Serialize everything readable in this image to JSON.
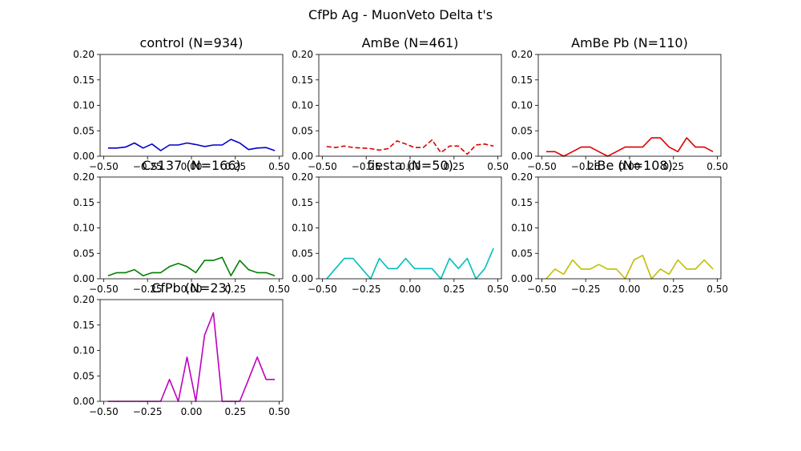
{
  "suptitle": "CfPb Ag - MuonVeto Delta t's",
  "chart_data": [
    {
      "type": "line",
      "title": "control (N=934)",
      "color": "#0000cc",
      "linestyle": "solid",
      "xlim": [
        -0.52,
        0.52
      ],
      "ylim": [
        0,
        0.2
      ],
      "xticks": [
        "−0.50",
        "−0.25",
        "0.00",
        "0.25",
        "0.50"
      ],
      "yticks": [
        "0.00",
        "0.05",
        "0.10",
        "0.15",
        "0.20"
      ],
      "x": [
        -0.475,
        -0.425,
        -0.375,
        -0.325,
        -0.275,
        -0.225,
        -0.175,
        -0.125,
        -0.075,
        -0.025,
        0.025,
        0.075,
        0.125,
        0.175,
        0.225,
        0.275,
        0.325,
        0.375,
        0.425,
        0.475
      ],
      "y": [
        0.016,
        0.016,
        0.018,
        0.026,
        0.016,
        0.024,
        0.011,
        0.022,
        0.022,
        0.026,
        0.023,
        0.019,
        0.022,
        0.022,
        0.033,
        0.026,
        0.013,
        0.016,
        0.017,
        0.011
      ]
    },
    {
      "type": "line",
      "title": "AmBe (N=461)",
      "color": "#dd0000",
      "linestyle": "dashed",
      "xlim": [
        -0.52,
        0.52
      ],
      "ylim": [
        0,
        0.2
      ],
      "xticks": [
        "−0.50",
        "−0.25",
        "0.00",
        "0.25",
        "0.50"
      ],
      "yticks": [
        "0.00",
        "0.05",
        "0.10",
        "0.15",
        "0.20"
      ],
      "x": [
        -0.475,
        -0.425,
        -0.375,
        -0.325,
        -0.275,
        -0.225,
        -0.175,
        -0.125,
        -0.075,
        -0.025,
        0.025,
        0.075,
        0.125,
        0.175,
        0.225,
        0.275,
        0.325,
        0.375,
        0.425,
        0.475
      ],
      "y": [
        0.019,
        0.017,
        0.02,
        0.017,
        0.016,
        0.015,
        0.012,
        0.015,
        0.03,
        0.024,
        0.017,
        0.017,
        0.032,
        0.007,
        0.02,
        0.02,
        0.004,
        0.022,
        0.024,
        0.02
      ]
    },
    {
      "type": "line",
      "title": "AmBe Pb (N=110)",
      "color": "#dd0000",
      "linestyle": "solid",
      "xlim": [
        -0.52,
        0.52
      ],
      "ylim": [
        0,
        0.2
      ],
      "xticks": [
        "−0.50",
        "−0.25",
        "0.00",
        "0.25",
        "0.50"
      ],
      "yticks": [
        "0.00",
        "0.05",
        "0.10",
        "0.15",
        "0.20"
      ],
      "x": [
        -0.475,
        -0.425,
        -0.375,
        -0.325,
        -0.275,
        -0.225,
        -0.175,
        -0.125,
        -0.075,
        -0.025,
        0.025,
        0.075,
        0.125,
        0.175,
        0.225,
        0.275,
        0.325,
        0.375,
        0.425,
        0.475
      ],
      "y": [
        0.009,
        0.009,
        0.0,
        0.009,
        0.018,
        0.018,
        0.009,
        0.0,
        0.009,
        0.018,
        0.018,
        0.018,
        0.036,
        0.036,
        0.018,
        0.009,
        0.036,
        0.018,
        0.018,
        0.009
      ]
    },
    {
      "type": "line",
      "title": "Cs137 (N=166)",
      "color": "#007f00",
      "linestyle": "solid",
      "xlim": [
        -0.52,
        0.52
      ],
      "ylim": [
        0,
        0.2
      ],
      "xticks": [
        "−0.50",
        "−0.25",
        "0.00",
        "0.25",
        "0.50"
      ],
      "yticks": [
        "0.00",
        "0.05",
        "0.10",
        "0.15",
        "0.20"
      ],
      "x": [
        -0.475,
        -0.425,
        -0.375,
        -0.325,
        -0.275,
        -0.225,
        -0.175,
        -0.125,
        -0.075,
        -0.025,
        0.025,
        0.075,
        0.125,
        0.175,
        0.225,
        0.275,
        0.325,
        0.375,
        0.425,
        0.475
      ],
      "y": [
        0.006,
        0.012,
        0.012,
        0.018,
        0.006,
        0.012,
        0.012,
        0.024,
        0.03,
        0.024,
        0.012,
        0.036,
        0.036,
        0.042,
        0.006,
        0.036,
        0.018,
        0.012,
        0.012,
        0.006
      ]
    },
    {
      "type": "line",
      "title": "fiesta (N=50)",
      "color": "#00bfbf",
      "linestyle": "solid",
      "xlim": [
        -0.52,
        0.52
      ],
      "ylim": [
        0,
        0.2
      ],
      "xticks": [
        "−0.50",
        "−0.25",
        "0.00",
        "0.25",
        "0.50"
      ],
      "yticks": [
        "0.00",
        "0.05",
        "0.10",
        "0.15",
        "0.20"
      ],
      "x": [
        -0.475,
        -0.425,
        -0.375,
        -0.325,
        -0.275,
        -0.225,
        -0.175,
        -0.125,
        -0.075,
        -0.025,
        0.025,
        0.075,
        0.125,
        0.175,
        0.225,
        0.275,
        0.325,
        0.375,
        0.425,
        0.475
      ],
      "y": [
        0.0,
        0.02,
        0.04,
        0.04,
        0.02,
        0.0,
        0.04,
        0.02,
        0.02,
        0.04,
        0.02,
        0.02,
        0.02,
        0.0,
        0.04,
        0.02,
        0.04,
        0.0,
        0.02,
        0.06
      ]
    },
    {
      "type": "line",
      "title": "LiBe (N=108)",
      "color": "#bfbf00",
      "linestyle": "solid",
      "xlim": [
        -0.52,
        0.52
      ],
      "ylim": [
        0,
        0.2
      ],
      "xticks": [
        "−0.50",
        "−0.25",
        "0.00",
        "0.25",
        "0.50"
      ],
      "yticks": [
        "0.00",
        "0.05",
        "0.10",
        "0.15",
        "0.20"
      ],
      "x": [
        -0.475,
        -0.425,
        -0.375,
        -0.325,
        -0.275,
        -0.225,
        -0.175,
        -0.125,
        -0.075,
        -0.025,
        0.025,
        0.075,
        0.125,
        0.175,
        0.225,
        0.275,
        0.325,
        0.375,
        0.425,
        0.475
      ],
      "y": [
        0.0,
        0.019,
        0.009,
        0.037,
        0.019,
        0.019,
        0.028,
        0.019,
        0.019,
        0.0,
        0.037,
        0.046,
        0.0,
        0.019,
        0.009,
        0.037,
        0.019,
        0.019,
        0.037,
        0.019
      ]
    },
    {
      "type": "line",
      "title": "CfPb (N=23)",
      "color": "#bf00bf",
      "linestyle": "solid",
      "xlim": [
        -0.52,
        0.52
      ],
      "ylim": [
        0,
        0.2
      ],
      "xticks": [
        "−0.50",
        "−0.25",
        "0.00",
        "0.25",
        "0.50"
      ],
      "yticks": [
        "0.00",
        "0.05",
        "0.10",
        "0.15",
        "0.20"
      ],
      "x": [
        -0.475,
        -0.425,
        -0.375,
        -0.325,
        -0.275,
        -0.225,
        -0.175,
        -0.125,
        -0.075,
        -0.025,
        0.025,
        0.075,
        0.125,
        0.175,
        0.225,
        0.275,
        0.325,
        0.375,
        0.425,
        0.475
      ],
      "y": [
        0.0,
        0.0,
        0.0,
        0.0,
        0.0,
        0.0,
        0.0,
        0.043,
        0.0,
        0.087,
        0.0,
        0.13,
        0.174,
        0.0,
        0.0,
        0.0,
        0.043,
        0.087,
        0.043,
        0.043
      ]
    }
  ]
}
